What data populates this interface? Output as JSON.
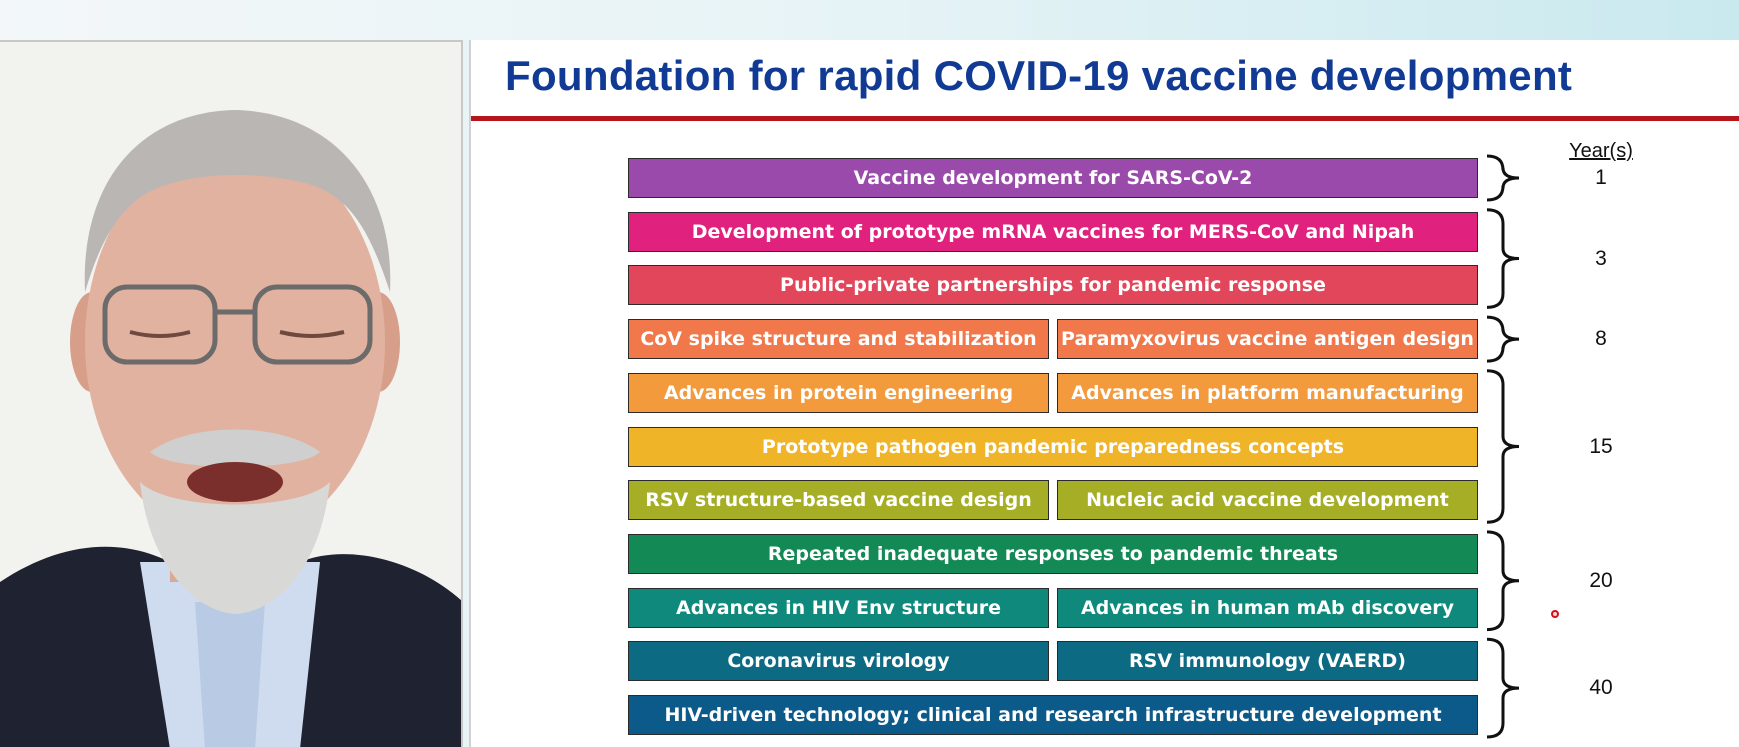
{
  "slide": {
    "title": "Foundation for rapid COVID-19 vaccine development",
    "years_header": "Year(s)",
    "rows": [
      {
        "bars": [
          {
            "label": "Vaccine development for SARS-CoV-2",
            "color": "#9a4aab"
          }
        ]
      },
      {
        "bars": [
          {
            "label": "Development of prototype mRNA vaccines for MERS-CoV and Nipah",
            "color": "#e0217d"
          }
        ]
      },
      {
        "bars": [
          {
            "label": "Public-private partnerships for pandemic response",
            "color": "#e2465a"
          }
        ]
      },
      {
        "bars": [
          {
            "label": "CoV spike structure and stabilization",
            "color": "#f1784a"
          },
          {
            "label": "Paramyxovirus vaccine antigen design",
            "color": "#f1784a"
          }
        ]
      },
      {
        "bars": [
          {
            "label": "Advances in protein engineering",
            "color": "#f39a3d"
          },
          {
            "label": "Advances in platform manufacturing",
            "color": "#f39a3d"
          }
        ]
      },
      {
        "bars": [
          {
            "label": "Prototype pathogen pandemic preparedness concepts",
            "color": "#f0b428"
          }
        ]
      },
      {
        "bars": [
          {
            "label": "RSV structure-based vaccine design",
            "color": "#a5ae24"
          },
          {
            "label": "Nucleic acid vaccine development",
            "color": "#a5ae24"
          }
        ]
      },
      {
        "bars": [
          {
            "label": "Repeated inadequate responses to pandemic threats",
            "color": "#138a55"
          }
        ]
      },
      {
        "bars": [
          {
            "label": "Advances in HIV Env structure",
            "color": "#10897d"
          },
          {
            "label": "Advances in human mAb discovery",
            "color": "#10897d"
          }
        ]
      },
      {
        "bars": [
          {
            "label": "Coronavirus virology",
            "color": "#0d6a83"
          },
          {
            "label": "RSV immunology (VAERD)",
            "color": "#0d6a83"
          }
        ]
      },
      {
        "bars": [
          {
            "label": "HIV-driven technology; clinical and research infrastructure development",
            "color": "#0b5a8a"
          }
        ]
      }
    ],
    "year_groups": [
      {
        "label": "1",
        "first_row": 0,
        "last_row": 0
      },
      {
        "label": "3",
        "first_row": 1,
        "last_row": 2
      },
      {
        "label": "8",
        "first_row": 3,
        "last_row": 3
      },
      {
        "label": "15",
        "first_row": 4,
        "last_row": 6
      },
      {
        "label": "20",
        "first_row": 7,
        "last_row": 8
      },
      {
        "label": "40",
        "first_row": 9,
        "last_row": 10
      }
    ]
  }
}
